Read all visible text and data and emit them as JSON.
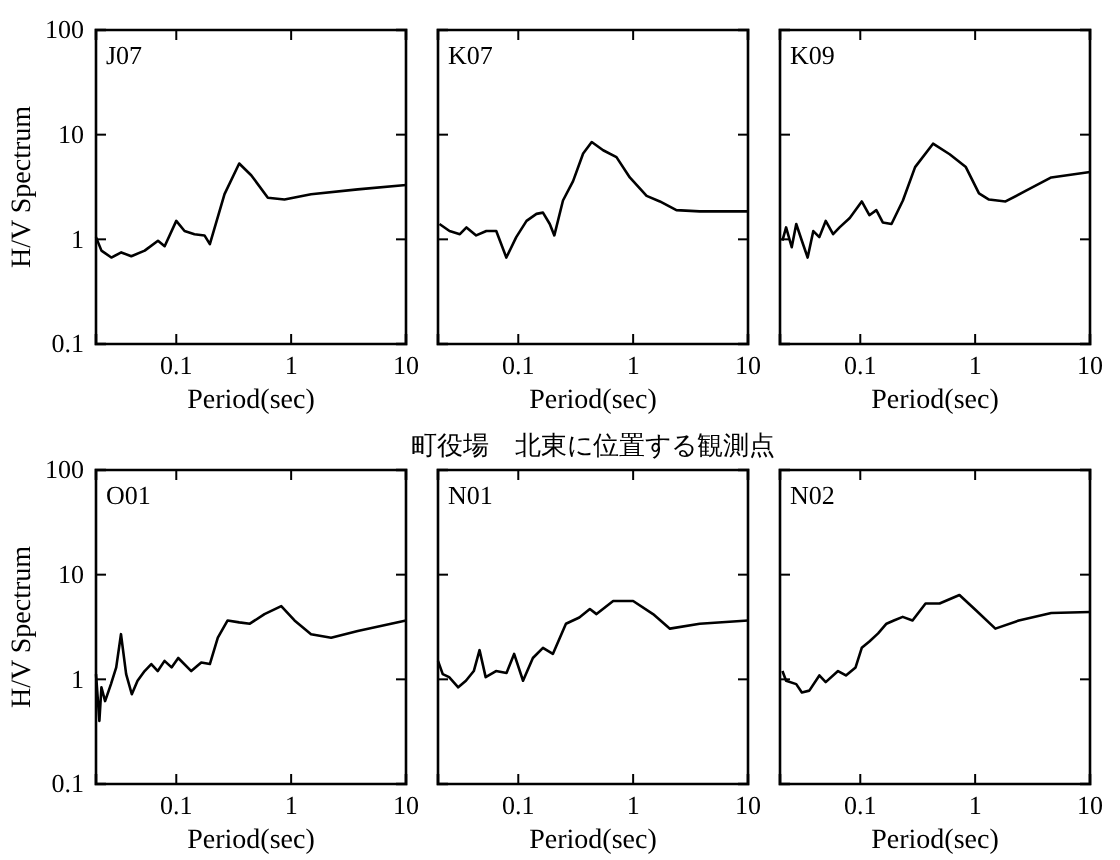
{
  "chart_data": [
    {
      "type": "line",
      "annotations": [
        "J07"
      ],
      "ylabel": "H/V Spectrum",
      "xlabel": "Period(sec)",
      "log": "xy",
      "xlim": [
        0.02,
        10
      ],
      "ylim": [
        0.1,
        100
      ],
      "xticks": [
        0.1,
        1,
        10
      ],
      "yticks": [
        0.1,
        1,
        10,
        100
      ],
      "grid": false,
      "line_style": "solid",
      "marker": "none",
      "series": [
        {
          "color": "#000000",
          "x": [
            0.02,
            0.0223,
            0.0272,
            0.0332,
            0.0406,
            0.0531,
            0.0693,
            0.0792,
            0.1,
            0.118,
            0.144,
            0.176,
            0.196,
            0.263,
            0.353,
            0.449,
            0.627,
            0.875,
            1.49,
            3.8,
            10
          ],
          "values": [
            1.05,
            0.78,
            0.67,
            0.75,
            0.69,
            0.78,
            0.97,
            0.86,
            1.5,
            1.2,
            1.12,
            1.09,
            0.9,
            2.7,
            5.3,
            4.1,
            2.5,
            2.4,
            2.7,
            3.0,
            3.3
          ]
        }
      ]
    },
    {
      "type": "line",
      "annotations": [
        "K07"
      ],
      "xlabel": "Period(sec)",
      "log": "xy",
      "xlim": [
        0.02,
        10
      ],
      "ylim": [
        0.1,
        100
      ],
      "xticks": [
        0.1,
        1,
        10
      ],
      "yticks": [
        0.1,
        1,
        10,
        100
      ],
      "tick_labels": "x",
      "grid": false,
      "line_style": "solid",
      "marker": "none",
      "series": [
        {
          "color": "#000000",
          "x": [
            0.0206,
            0.0252,
            0.031,
            0.0354,
            0.043,
            0.0527,
            0.0643,
            0.0787,
            0.096,
            0.118,
            0.144,
            0.164,
            0.188,
            0.206,
            0.245,
            0.3,
            0.367,
            0.436,
            0.548,
            0.716,
            0.935,
            1.31,
            1.71,
            2.38,
            3.8,
            10
          ],
          "values": [
            1.4,
            1.2,
            1.12,
            1.3,
            1.09,
            1.2,
            1.2,
            0.67,
            1.05,
            1.5,
            1.75,
            1.8,
            1.4,
            1.09,
            2.35,
            3.6,
            6.6,
            8.5,
            7.1,
            6.1,
            3.9,
            2.6,
            2.3,
            1.9,
            1.85,
            1.85
          ]
        }
      ]
    },
    {
      "type": "line",
      "annotations": [
        "K09"
      ],
      "xlabel": "Period(sec)",
      "log": "xy",
      "xlim": [
        0.02,
        10
      ],
      "ylim": [
        0.1,
        100
      ],
      "xticks": [
        0.1,
        1,
        10
      ],
      "yticks": [
        0.1,
        1,
        10,
        100
      ],
      "tick_labels": "x",
      "grid": false,
      "line_style": "solid",
      "marker": "none",
      "series": [
        {
          "color": "#000000",
          "x": [
            0.021,
            0.0226,
            0.0253,
            0.0277,
            0.031,
            0.0348,
            0.039,
            0.044,
            0.05,
            0.058,
            0.066,
            0.081,
            0.103,
            0.12,
            0.138,
            0.157,
            0.187,
            0.235,
            0.3,
            0.43,
            0.6,
            0.83,
            1.08,
            1.32,
            1.84,
            2.75,
            4.6,
            10
          ],
          "values": [
            0.97,
            1.3,
            0.84,
            1.4,
            0.97,
            0.67,
            1.2,
            1.05,
            1.5,
            1.12,
            1.3,
            1.6,
            2.3,
            1.7,
            1.9,
            1.45,
            1.4,
            2.35,
            4.9,
            8.2,
            6.5,
            4.9,
            2.75,
            2.4,
            2.3,
            2.9,
            3.9,
            4.4
          ]
        }
      ]
    },
    {
      "type": "line",
      "annotations": [
        "O01"
      ],
      "ylabel": "H/V Spectrum",
      "xlabel": "Period(sec)",
      "log": "xy",
      "xlim": [
        0.02,
        10
      ],
      "ylim": [
        0.1,
        100
      ],
      "xticks": [
        0.1,
        1,
        10
      ],
      "yticks": [
        0.1,
        1,
        10,
        100
      ],
      "grid": false,
      "line_style": "solid",
      "marker": "none",
      "series": [
        {
          "color": "#000000",
          "x": [
            0.02,
            0.0214,
            0.0223,
            0.024,
            0.027,
            0.03,
            0.033,
            0.0366,
            0.041,
            0.046,
            0.053,
            0.0606,
            0.069,
            0.079,
            0.091,
            0.104,
            0.135,
            0.165,
            0.196,
            0.23,
            0.28,
            0.353,
            0.437,
            0.586,
            0.82,
            1.07,
            1.49,
            2.23,
            3.8,
            10
          ],
          "values": [
            1.12,
            0.4,
            0.84,
            0.62,
            0.9,
            1.3,
            2.7,
            1.12,
            0.72,
            0.97,
            1.2,
            1.4,
            1.2,
            1.5,
            1.3,
            1.6,
            1.2,
            1.45,
            1.4,
            2.5,
            3.65,
            3.5,
            3.4,
            4.2,
            5.0,
            3.65,
            2.7,
            2.5,
            2.9,
            3.65
          ]
        }
      ]
    },
    {
      "type": "line",
      "title": "町役場　北東に位置する観測点",
      "annotations": [
        "N01"
      ],
      "xlabel": "Period(sec)",
      "log": "xy",
      "xlim": [
        0.02,
        10
      ],
      "ylim": [
        0.1,
        100
      ],
      "xticks": [
        0.1,
        1,
        10
      ],
      "yticks": [
        0.1,
        1,
        10,
        100
      ],
      "tick_labels": "x",
      "grid": false,
      "line_style": "solid",
      "marker": "none",
      "series": [
        {
          "color": "#000000",
          "x": [
            0.02,
            0.022,
            0.025,
            0.03,
            0.035,
            0.041,
            0.046,
            0.052,
            0.064,
            0.079,
            0.092,
            0.11,
            0.134,
            0.164,
            0.2,
            0.26,
            0.34,
            0.42,
            0.48,
            0.67,
            1,
            1.49,
            2.09,
            3.8,
            10
          ],
          "values": [
            1.5,
            1.12,
            1.05,
            0.84,
            0.97,
            1.2,
            1.9,
            1.05,
            1.2,
            1.15,
            1.75,
            0.97,
            1.6,
            2.0,
            1.75,
            3.4,
            3.9,
            4.7,
            4.2,
            5.6,
            5.6,
            4.2,
            3.05,
            3.4,
            3.65
          ]
        }
      ]
    },
    {
      "type": "line",
      "annotations": [
        "N02"
      ],
      "xlabel": "Period(sec)",
      "log": "xy",
      "xlim": [
        0.02,
        10
      ],
      "ylim": [
        0.1,
        100
      ],
      "xticks": [
        0.1,
        1,
        10
      ],
      "yticks": [
        0.1,
        1,
        10,
        100
      ],
      "tick_labels": "x",
      "grid": false,
      "line_style": "solid",
      "marker": "none",
      "series": [
        {
          "color": "#000000",
          "x": [
            0.021,
            0.0226,
            0.0277,
            0.031,
            0.036,
            0.044,
            0.05,
            0.064,
            0.075,
            0.091,
            0.103,
            0.12,
            0.143,
            0.169,
            0.196,
            0.234,
            0.285,
            0.37,
            0.49,
            0.73,
            1.01,
            1.5,
            2.4,
            4.6,
            10
          ],
          "values": [
            1.2,
            0.97,
            0.9,
            0.75,
            0.78,
            1.09,
            0.94,
            1.2,
            1.09,
            1.3,
            2.0,
            2.3,
            2.75,
            3.4,
            3.65,
            3.95,
            3.65,
            5.3,
            5.3,
            6.4,
            4.6,
            3.05,
            3.65,
            4.3,
            4.4
          ]
        }
      ]
    }
  ]
}
